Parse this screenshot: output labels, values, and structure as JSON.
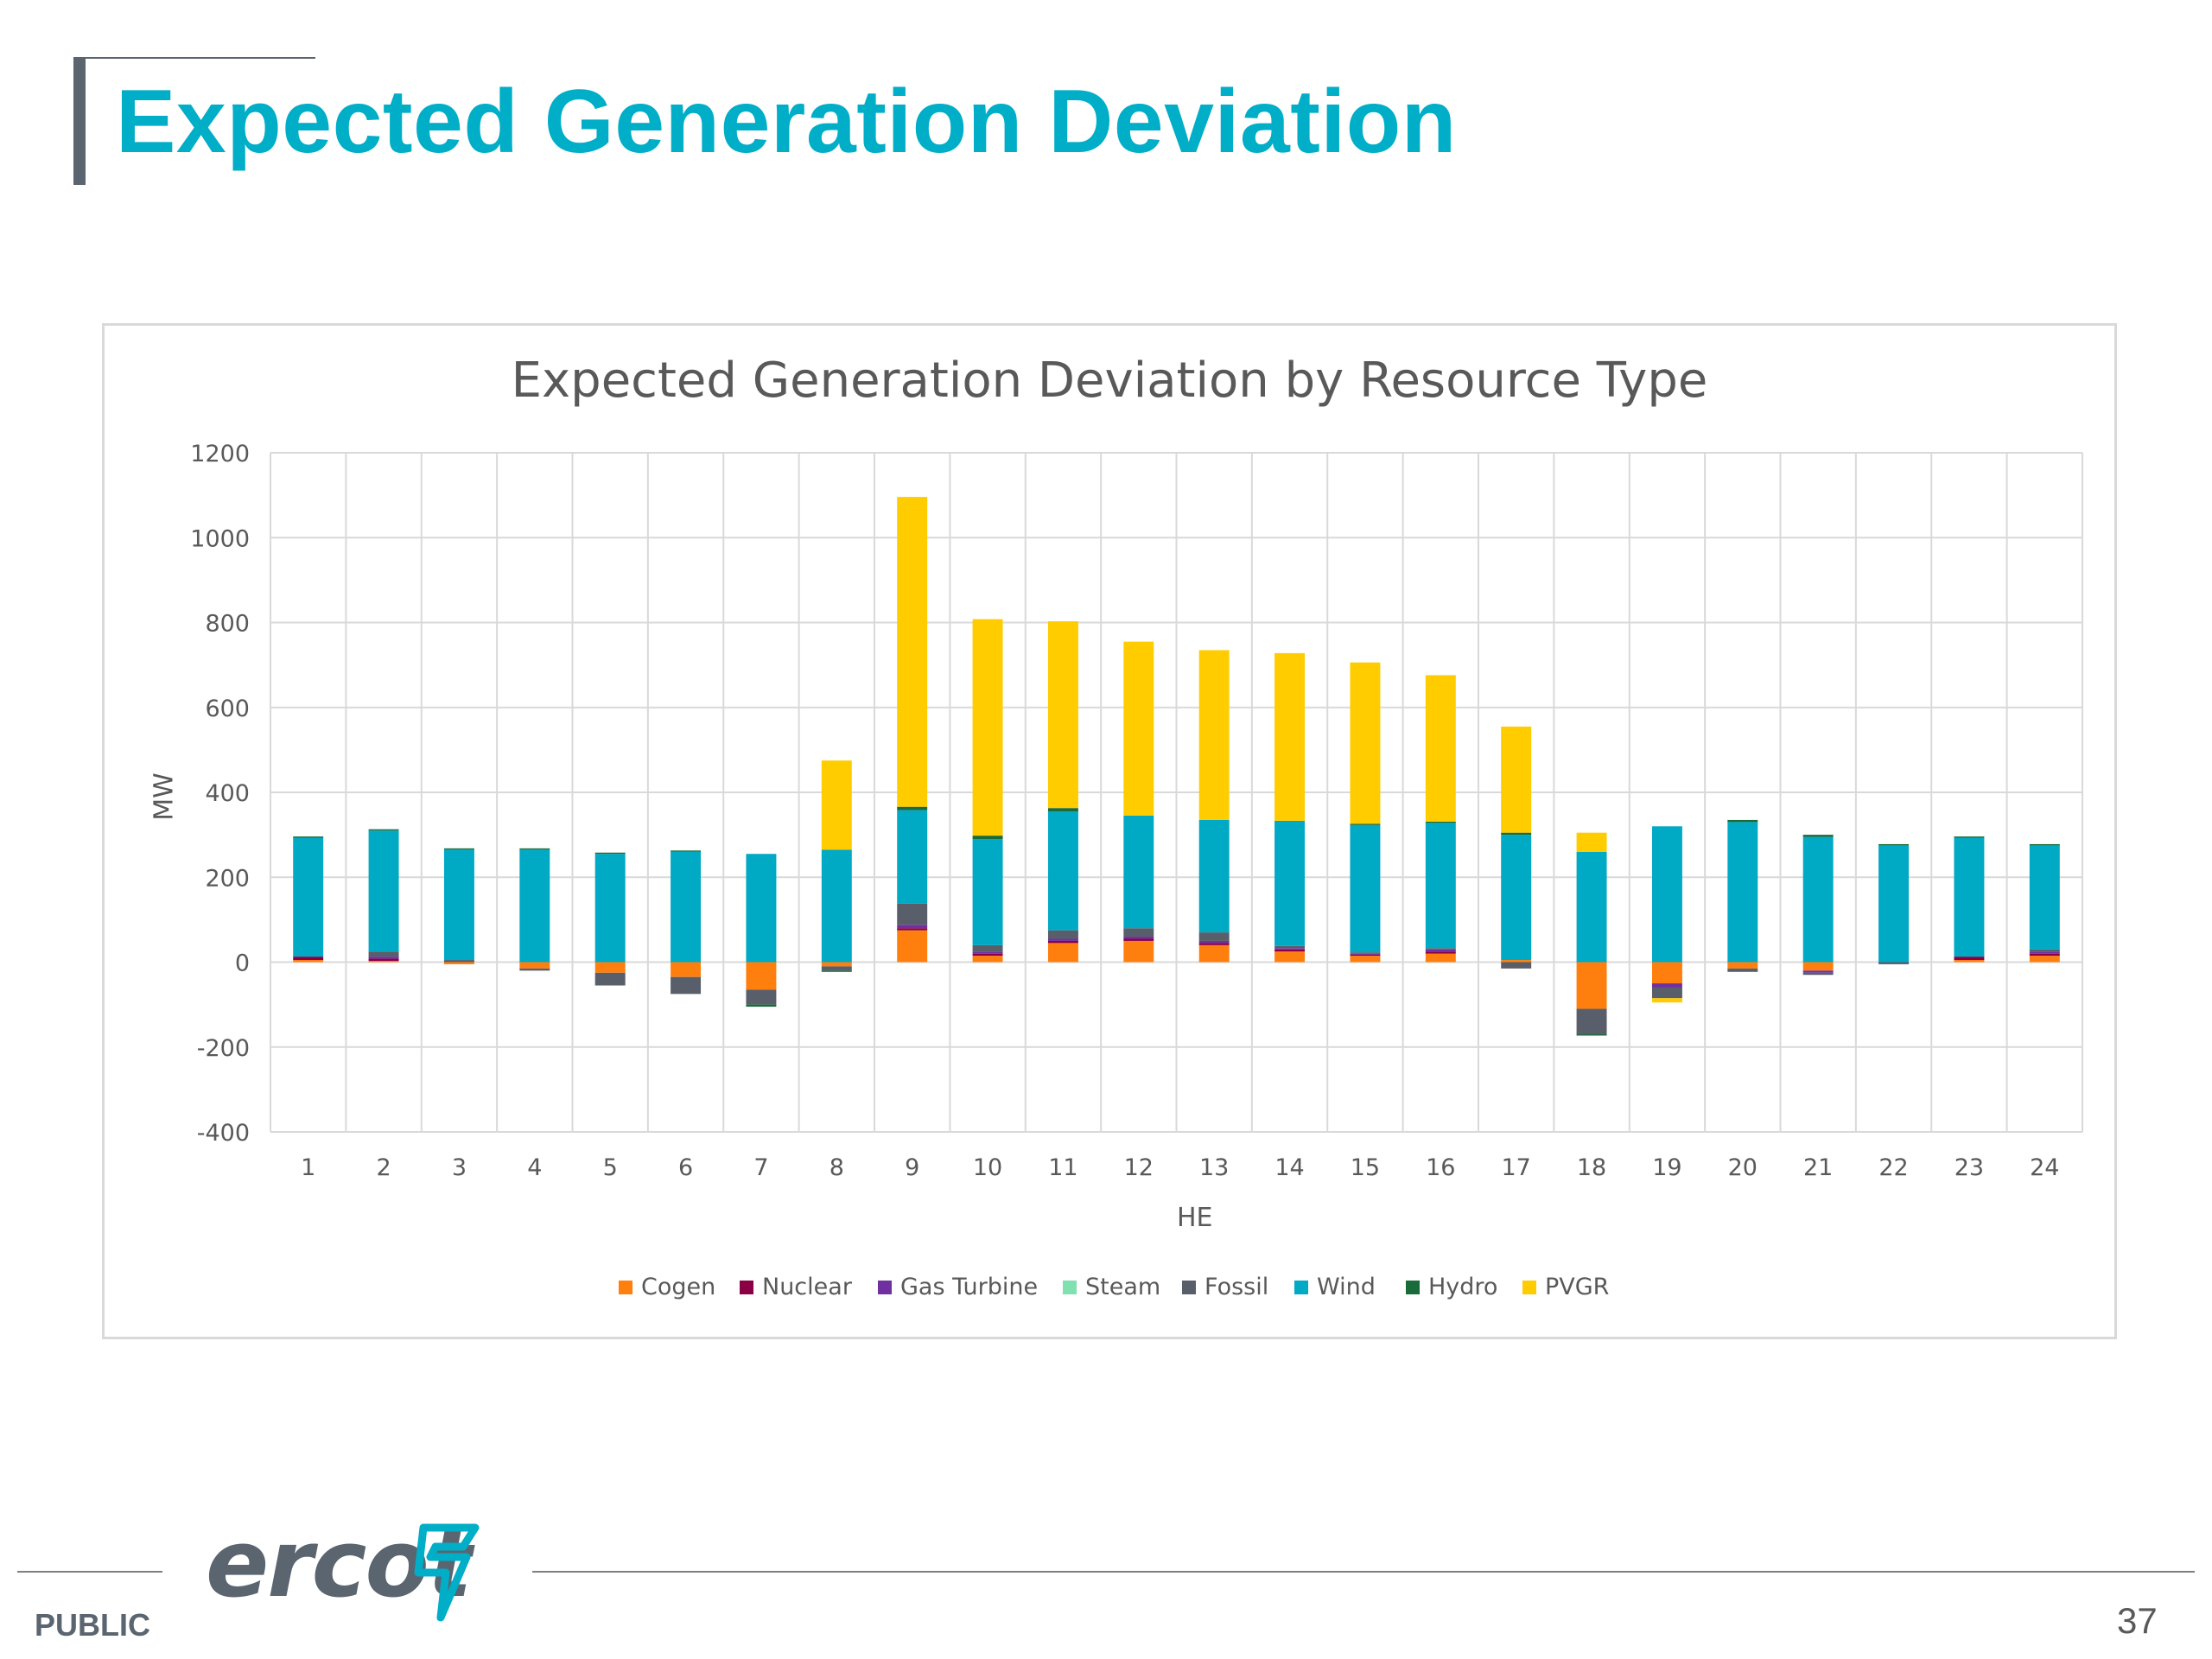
{
  "slide": {
    "title": "Expected Generation Deviation",
    "public_label": "PUBLIC",
    "page_number": "37",
    "logo_text": "ercot"
  },
  "colors": {
    "title": "#00aec7",
    "Cogen": "#ff7f0e",
    "Nuclear": "#8b0045",
    "Gas Turbine": "#7030a0",
    "Steam": "#7fe0b0",
    "Fossil": "#595f6a",
    "Wind": "#00a9c4",
    "Hydro": "#1a6b3a",
    "PVGR": "#ffcc00"
  },
  "chart_data": {
    "type": "bar",
    "stacked": true,
    "title": "Expected Generation Deviation by Resource Type",
    "xlabel": "HE",
    "ylabel": "MW",
    "ylim": [
      -400,
      1200
    ],
    "yticks": [
      -400,
      -200,
      0,
      200,
      400,
      600,
      800,
      1000,
      1200
    ],
    "grid": true,
    "legend_position": "bottom",
    "categories": [
      "1",
      "2",
      "3",
      "4",
      "5",
      "6",
      "7",
      "8",
      "9",
      "10",
      "11",
      "12",
      "13",
      "14",
      "15",
      "16",
      "17",
      "18",
      "19",
      "20",
      "21",
      "22",
      "23",
      "24"
    ],
    "series": [
      {
        "name": "Cogen",
        "values": [
          5,
          3,
          -5,
          -15,
          -25,
          -35,
          -65,
          -10,
          75,
          15,
          45,
          50,
          40,
          25,
          15,
          20,
          5,
          -110,
          -50,
          -15,
          -20,
          0,
          5,
          15
        ]
      },
      {
        "name": "Nuclear",
        "values": [
          8,
          5,
          0,
          0,
          0,
          0,
          0,
          0,
          5,
          5,
          5,
          5,
          5,
          5,
          3,
          5,
          0,
          0,
          0,
          0,
          0,
          0,
          8,
          5
        ]
      },
      {
        "name": "Gas Turbine",
        "values": [
          0,
          5,
          0,
          0,
          0,
          0,
          0,
          0,
          8,
          5,
          5,
          5,
          5,
          3,
          2,
          5,
          0,
          0,
          -10,
          0,
          -5,
          0,
          0,
          5
        ]
      },
      {
        "name": "Steam",
        "values": [
          0,
          0,
          0,
          0,
          0,
          0,
          0,
          0,
          0,
          0,
          0,
          0,
          0,
          0,
          0,
          0,
          0,
          0,
          0,
          0,
          0,
          0,
          0,
          0
        ]
      },
      {
        "name": "Fossil",
        "values": [
          0,
          12,
          5,
          -5,
          -30,
          -40,
          -35,
          -10,
          50,
          15,
          20,
          20,
          20,
          5,
          3,
          3,
          -15,
          -60,
          -25,
          -8,
          -5,
          -5,
          0,
          5
        ]
      },
      {
        "name": "Wind",
        "values": [
          280,
          285,
          260,
          265,
          255,
          260,
          255,
          265,
          220,
          250,
          280,
          265,
          265,
          295,
          300,
          295,
          295,
          260,
          320,
          330,
          295,
          275,
          280,
          245
        ]
      },
      {
        "name": "Hydro",
        "values": [
          3,
          3,
          3,
          3,
          3,
          3,
          -5,
          -3,
          8,
          8,
          8,
          0,
          0,
          0,
          3,
          3,
          5,
          -3,
          0,
          5,
          5,
          3,
          3,
          3
        ]
      },
      {
        "name": "PVGR",
        "values": [
          0,
          0,
          0,
          0,
          0,
          0,
          0,
          210,
          730,
          510,
          440,
          410,
          400,
          395,
          380,
          345,
          250,
          45,
          -10,
          0,
          0,
          0,
          0,
          0
        ]
      }
    ]
  }
}
